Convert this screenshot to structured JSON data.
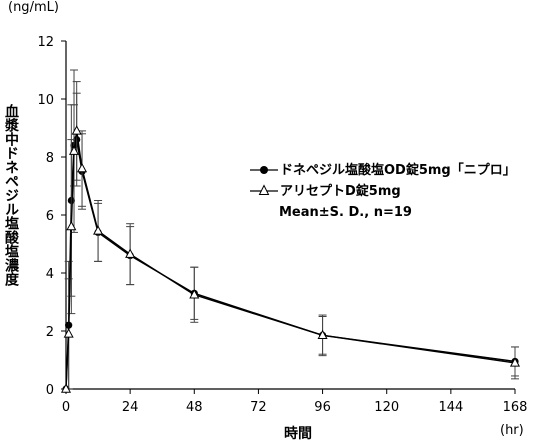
{
  "chart_data": {
    "type": "line",
    "title": "",
    "y_unit": "(ng/mL)",
    "ylabel": "血漿中ドネペジル塩酸塩濃度",
    "xlabel": "時間",
    "x_unit": "(hr)",
    "xlim": [
      0,
      168
    ],
    "ylim": [
      0,
      12
    ],
    "x_ticks": [
      0,
      24,
      48,
      72,
      96,
      120,
      144,
      168
    ],
    "y_ticks": [
      0,
      2,
      4,
      6,
      8,
      10,
      12
    ],
    "x_tick_labels": [
      "0",
      "24",
      "48",
      "72",
      "96",
      "120",
      "144",
      "168"
    ],
    "y_tick_labels": [
      "0",
      "2",
      "4",
      "6",
      "8",
      "10",
      "12"
    ],
    "legend_position": "center-right",
    "legend_note": "Mean±S. D.,  n=19",
    "series": [
      {
        "name": "ドネペジル塩酸塩OD錠5mg「ニプロ」",
        "marker": "filled-circle",
        "color": "#000000",
        "points": [
          {
            "x": 0,
            "y": 0.0,
            "sd": 0.0
          },
          {
            "x": 1,
            "y": 2.2,
            "sd": 2.2
          },
          {
            "x": 2,
            "y": 6.5,
            "sd": 3.3
          },
          {
            "x": 3,
            "y": 8.4,
            "sd": 1.4
          },
          {
            "x": 4,
            "y": 8.6,
            "sd": 1.6
          },
          {
            "x": 6,
            "y": 7.5,
            "sd": 1.3
          },
          {
            "x": 12,
            "y": 5.4,
            "sd": 1.0
          },
          {
            "x": 24,
            "y": 4.6,
            "sd": 1.0
          },
          {
            "x": 48,
            "y": 3.3,
            "sd": 0.9
          },
          {
            "x": 96,
            "y": 1.85,
            "sd": 0.65
          },
          {
            "x": 168,
            "y": 0.95,
            "sd": 0.5
          }
        ]
      },
      {
        "name": "アリセプトD錠5mg",
        "marker": "open-triangle",
        "color": "#000000",
        "points": [
          {
            "x": 0,
            "y": 0.0,
            "sd": 0.0
          },
          {
            "x": 1,
            "y": 1.9,
            "sd": 1.9
          },
          {
            "x": 2,
            "y": 5.6,
            "sd": 3.0
          },
          {
            "x": 3,
            "y": 8.2,
            "sd": 2.8
          },
          {
            "x": 4,
            "y": 8.9,
            "sd": 1.7
          },
          {
            "x": 6,
            "y": 7.6,
            "sd": 1.3
          },
          {
            "x": 12,
            "y": 5.45,
            "sd": 1.05
          },
          {
            "x": 24,
            "y": 4.65,
            "sd": 1.05
          },
          {
            "x": 48,
            "y": 3.25,
            "sd": 0.95
          },
          {
            "x": 96,
            "y": 1.85,
            "sd": 0.7
          },
          {
            "x": 168,
            "y": 0.9,
            "sd": 0.55
          }
        ]
      }
    ]
  }
}
